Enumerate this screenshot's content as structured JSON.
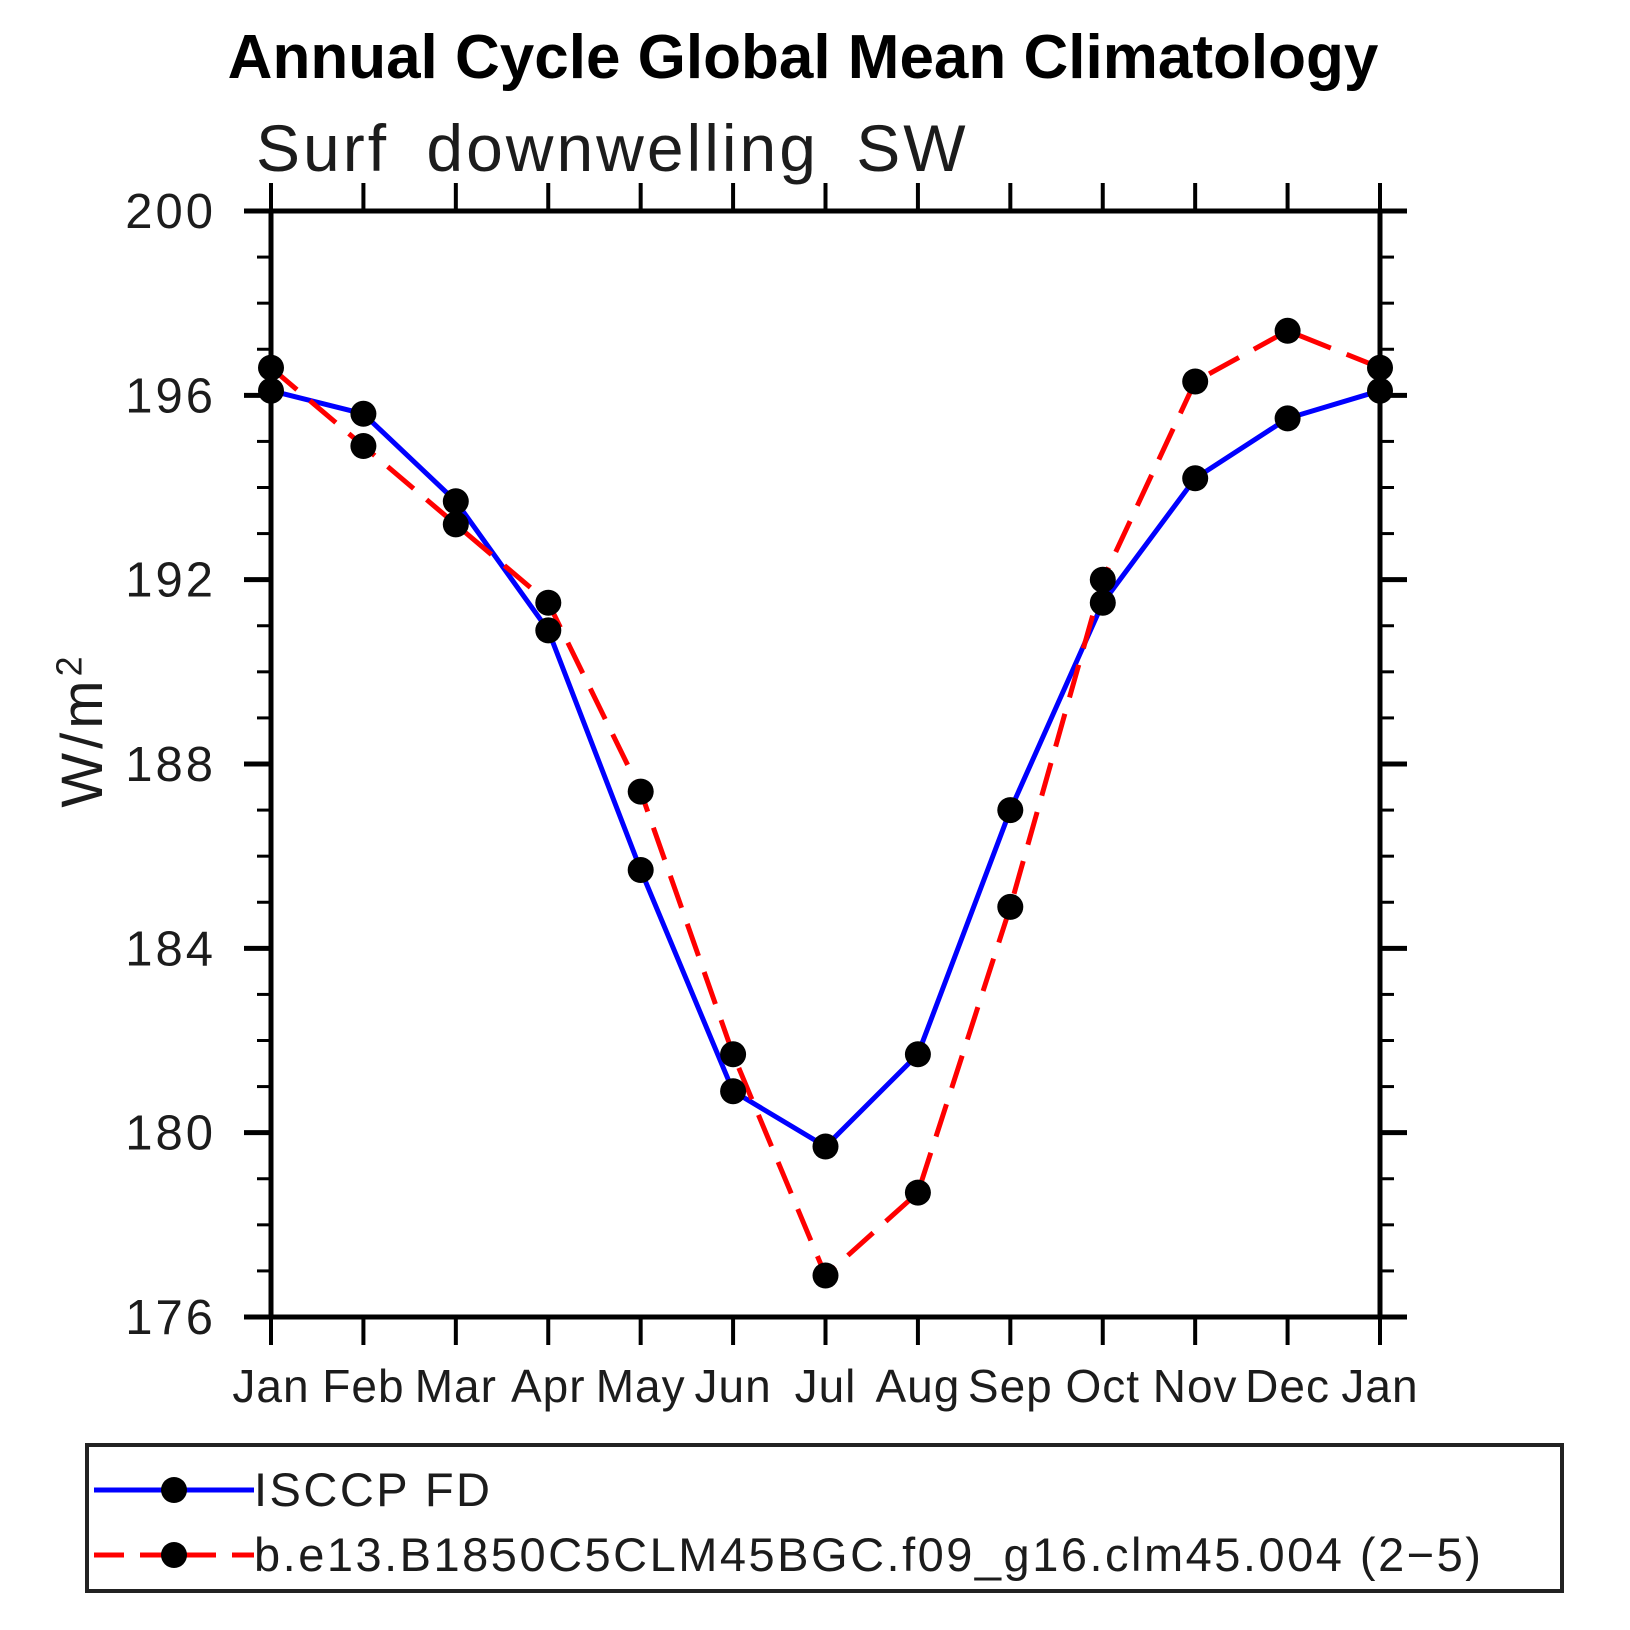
{
  "title": "Annual Cycle Global Mean Climatology",
  "subtitle": "Surf downwelling SW",
  "axis": {
    "ylabel_base": "W/m",
    "ylabel_exp": "2",
    "x_tick_labels": [
      "Jan",
      "Feb",
      "Mar",
      "Apr",
      "May",
      "Jun",
      "Jul",
      "Aug",
      "Sep",
      "Oct",
      "Nov",
      "Dec",
      "Jan"
    ],
    "y_tick_labels": [
      "200",
      "196",
      "192",
      "188",
      "184",
      "180",
      "176"
    ]
  },
  "colors": {
    "isccp_line": "#0000ff",
    "model_line": "#ff0000",
    "marker": "#000000",
    "axis": "#000000",
    "text": "#1c1c1c"
  },
  "legend": {
    "entries": [
      {
        "label": "ISCCP FD",
        "color": "#0000ff",
        "style": "solid"
      },
      {
        "label": "b.e13.B1850C5CLM45BGC.f09_g16.clm45.004 (2−5)",
        "color": "#ff0000",
        "style": "dashed"
      }
    ]
  },
  "chart_data": {
    "type": "line",
    "title": "Annual Cycle Global Mean Climatology",
    "subtitle": "Surf downwelling SW",
    "ylabel": "W/m2",
    "x_categories": [
      "Jan",
      "Feb",
      "Mar",
      "Apr",
      "May",
      "Jun",
      "Jul",
      "Aug",
      "Sep",
      "Oct",
      "Nov",
      "Dec",
      "Jan"
    ],
    "ylim": [
      176,
      200
    ],
    "ytick_step": 4,
    "yminor_step": 1,
    "grid": false,
    "legend_position": "below-plot-boxed",
    "marker": {
      "shape": "circle",
      "color": "#000000",
      "radius": 13
    },
    "series": [
      {
        "name": "ISCCP FD",
        "color": "#0000ff",
        "line_style": "solid",
        "values": [
          196.1,
          195.6,
          193.7,
          190.9,
          185.7,
          180.9,
          179.7,
          181.7,
          187.0,
          191.5,
          194.2,
          195.5,
          196.1
        ]
      },
      {
        "name": "b.e13.B1850C5CLM45BGC.f09_g16.clm45.004 (2−5)",
        "color": "#ff0000",
        "line_style": "dashed",
        "values": [
          196.6,
          194.9,
          193.2,
          191.5,
          187.4,
          181.7,
          176.9,
          178.7,
          184.9,
          192.0,
          196.3,
          197.4,
          196.6
        ]
      }
    ]
  }
}
